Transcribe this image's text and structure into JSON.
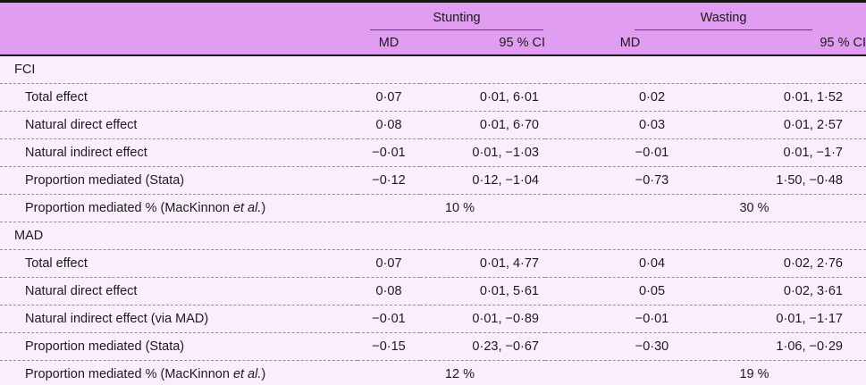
{
  "table": {
    "colors": {
      "header_bg": "#e19df2",
      "body_bg": "#faeefd",
      "rule_dark": "#161616",
      "rule_dashed": "#909090"
    },
    "groups": [
      {
        "label": "Stunting"
      },
      {
        "label": "Wasting"
      }
    ],
    "subheaders": [
      "MD",
      "95 % CI",
      "MD",
      "95 % CI"
    ],
    "sections": [
      {
        "label": "FCI",
        "rows": [
          {
            "label": "Total effect",
            "s_md": "0·07",
            "s_ci": "0·01, 6·01",
            "w_md": "0·02",
            "w_ci": "0·01, 1·52"
          },
          {
            "label": "Natural direct effect",
            "s_md": "0·08",
            "s_ci": "0·01, 6·70",
            "w_md": "0·03",
            "w_ci": "0·01, 2·57"
          },
          {
            "label": "Natural indirect effect",
            "s_md": "−0·01",
            "s_ci": "0·01, −1·03",
            "w_md": "−0·01",
            "w_ci": "0·01, −1·7"
          },
          {
            "label": "Proportion mediated (Stata)",
            "s_md": "−0·12",
            "s_ci": "0·12, −1·04",
            "w_md": "−0·73",
            "w_ci": "1·50, −0·48"
          },
          {
            "label_prefix": "Proportion mediated % (MacKinnon ",
            "label_italic": "et al.",
            "label_suffix": ")",
            "s_pct": "10 %",
            "w_pct": "30 %"
          }
        ]
      },
      {
        "label": "MAD",
        "rows": [
          {
            "label": "Total effect",
            "s_md": "0·07",
            "s_ci": "0·01, 4·77",
            "w_md": "0·04",
            "w_ci": "0·02, 2·76"
          },
          {
            "label": "Natural direct effect",
            "s_md": "0·08",
            "s_ci": "0·01, 5·61",
            "w_md": "0·05",
            "w_ci": "0·02, 3·61"
          },
          {
            "label": "Natural indirect effect (via MAD)",
            "s_md": "−0·01",
            "s_ci": "0·01, −0·89",
            "w_md": "−0·01",
            "w_ci": "0·01, −1·17"
          },
          {
            "label": "Proportion mediated (Stata)",
            "s_md": "−0·15",
            "s_ci": "0·23, −0·67",
            "w_md": "−0·30",
            "w_ci": "1·06, −0·29"
          },
          {
            "label_prefix": "Proportion mediated % (MacKinnon ",
            "label_italic": "et al.",
            "label_suffix": ")",
            "s_pct": "12 %",
            "w_pct": "19 %"
          }
        ]
      }
    ]
  }
}
